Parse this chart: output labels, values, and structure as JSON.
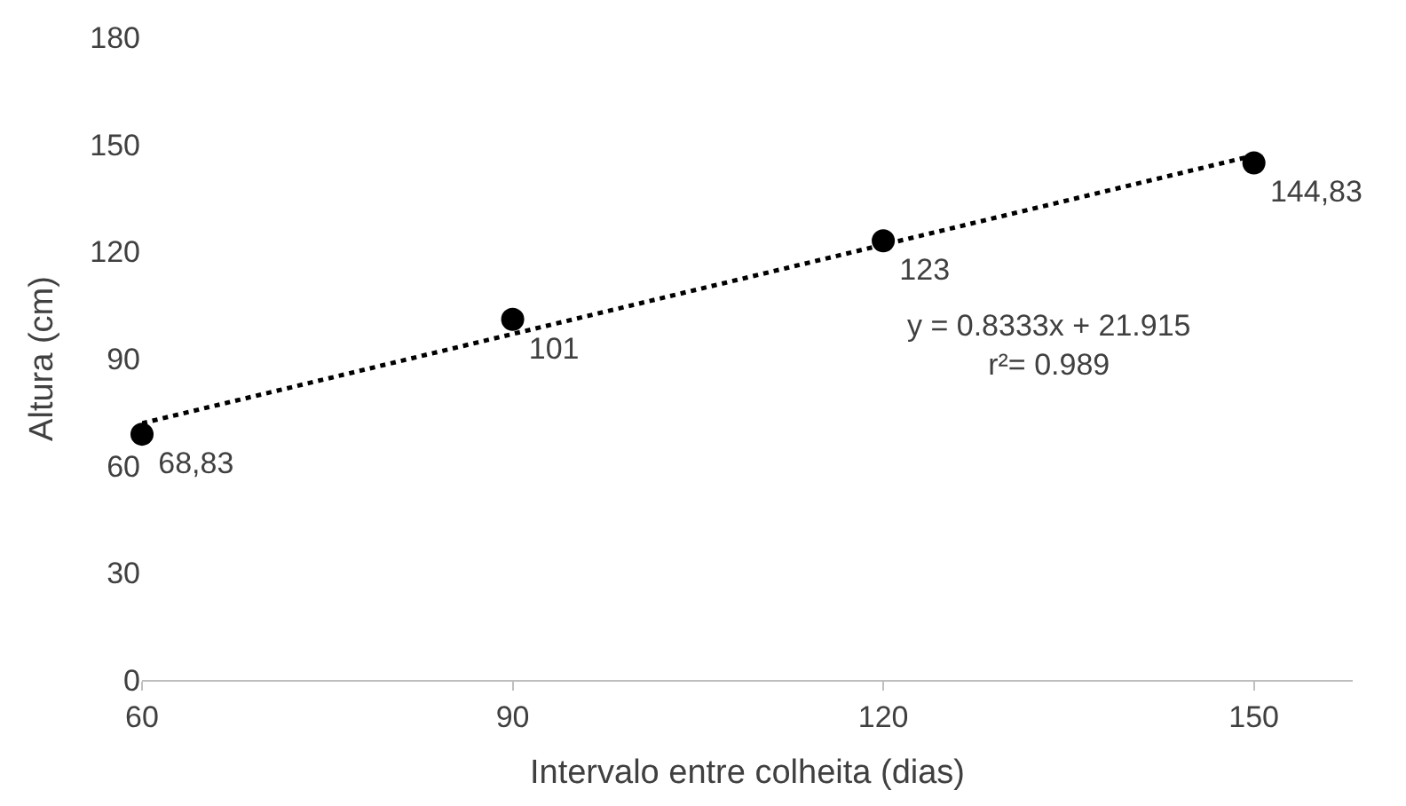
{
  "chart_data": {
    "type": "scatter",
    "xlabel": "Intervalo entre colheita (dias)",
    "ylabel": "Altura (cm)",
    "x": [
      60,
      90,
      120,
      150
    ],
    "series": [
      {
        "color": "#000000",
        "values": [
          68.83,
          101,
          123,
          144.83
        ],
        "value_labels": [
          "68,83",
          "101",
          "123",
          "144,83"
        ],
        "marker": "circle"
      },
      {
        "type": "line",
        "color": "#000000",
        "x": [
          60,
          150
        ],
        "values": [
          71.9,
          146.9
        ],
        "line_style": "dotted",
        "marker": "none"
      }
    ],
    "annotations": [
      "y = 0.8333x + 21.915\nr²= 0.989"
    ],
    "xlim": [
      60,
      158
    ],
    "xticks": [
      60,
      90,
      120,
      150
    ],
    "ylim": [
      0,
      180
    ],
    "yticks": [
      0,
      30,
      60,
      90,
      120,
      150,
      180
    ]
  }
}
